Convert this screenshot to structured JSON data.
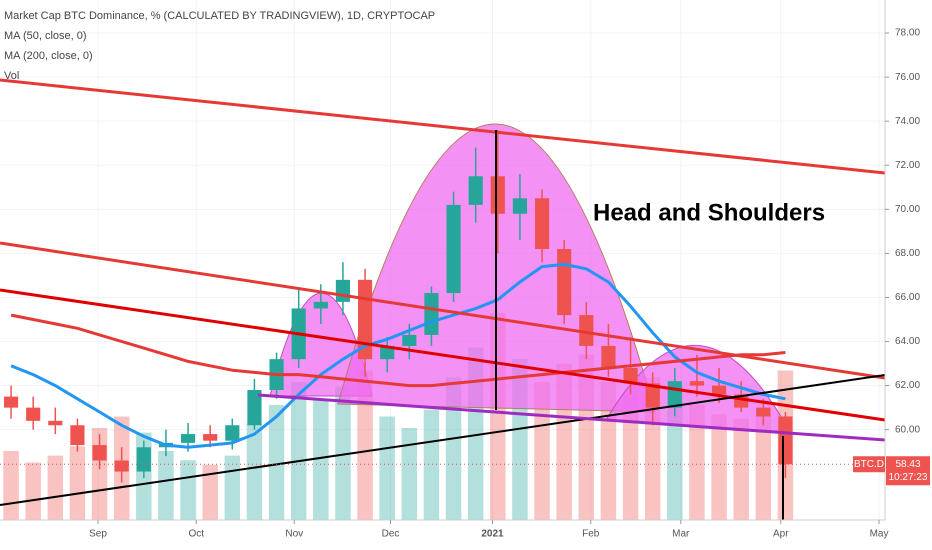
{
  "chart_data": {
    "type": "candlestick",
    "title": "Market Cap BTC Dominance, % (CALCULATED BY TRADINGVIEW), 1D, CRYPTOCAP",
    "annotation": "Head and Shoulders",
    "symbol": "BTC.D",
    "last_price": {
      "value": 58.43,
      "label": "58.43"
    },
    "countdown": "10:27:23",
    "volume_name": "Vol",
    "open": [
      61.5,
      61,
      60.4,
      60.2,
      59.3,
      58.6,
      58.1,
      59.2,
      59.4,
      59.8,
      59.5,
      60.2,
      61.8,
      63.2,
      65.5,
      65.8,
      66.8,
      63.2,
      63.8,
      64.3,
      66.2,
      70.2,
      71.5,
      69.8,
      70.5,
      68.2,
      65.2,
      63.8,
      62.8,
      62.1,
      61,
      62.2,
      62,
      61.6,
      61,
      60.6
    ],
    "high": [
      62,
      61.5,
      61,
      60.5,
      59.8,
      59.2,
      59.5,
      60,
      60.3,
      60.2,
      60.5,
      62.3,
      63.5,
      66.4,
      66.6,
      67.6,
      67.3,
      64.2,
      64.8,
      66.5,
      70.8,
      72.8,
      73.6,
      71.6,
      70.9,
      68.6,
      65.8,
      64.8,
      64.2,
      62.6,
      62.8,
      63.4,
      62.8,
      62.2,
      61.4,
      60.8
    ],
    "low": [
      60.5,
      60,
      59.8,
      59,
      58.2,
      57.6,
      57.8,
      58.8,
      59,
      59.2,
      59.1,
      60,
      61.4,
      62.8,
      64.8,
      65.2,
      62.4,
      62.6,
      63.2,
      63.8,
      65.8,
      69.4,
      68,
      68.6,
      67.6,
      64.8,
      63.2,
      62.4,
      61.6,
      60.2,
      60.6,
      61.5,
      61.2,
      60.8,
      60.2,
      57.8
    ],
    "close": [
      61,
      60.4,
      60.2,
      59.3,
      58.6,
      58.1,
      59.2,
      59.4,
      59.8,
      59.5,
      60.2,
      61.8,
      63.2,
      65.5,
      65.8,
      66.8,
      63.2,
      63.8,
      64.3,
      66.2,
      70.2,
      71.5,
      69.8,
      70.5,
      68.2,
      65.2,
      63.8,
      62.8,
      62.1,
      61,
      62.2,
      62,
      61.6,
      61,
      60.6,
      58.43
    ],
    "volume": [
      3,
      2.5,
      2.8,
      3.2,
      4,
      4.5,
      3.8,
      3,
      2.6,
      2.4,
      2.8,
      4.2,
      5,
      6,
      5.2,
      5.8,
      6.5,
      4.5,
      4,
      4.8,
      6.2,
      7.5,
      9,
      7,
      6,
      6.8,
      7.2,
      6,
      5.5,
      6.2,
      5.8,
      5,
      4.6,
      4.4,
      4.8,
      6.5
    ],
    "volume_lim": [
      0,
      20
    ],
    "series": [
      {
        "name": "MA (50, close, 0)",
        "color": "#2196f3",
        "values": [
          62.9,
          62.5,
          62.0,
          61.4,
          60.8,
          60.2,
          59.7,
          59.3,
          59.2,
          59.3,
          59.4,
          59.8,
          60.6,
          61.6,
          62.5,
          63.2,
          63.8,
          64.1,
          64.5,
          64.9,
          65.2,
          65.5,
          65.9,
          66.7,
          67.4,
          67.5,
          67.3,
          66.7,
          65.6,
          64.4,
          63.3,
          62.6,
          62.2,
          61.9,
          61.6,
          61.4
        ]
      },
      {
        "name": "MA (200, close, 0)",
        "color": "#e53935",
        "values": [
          65.2,
          65.0,
          64.8,
          64.6,
          64.3,
          64.0,
          63.7,
          63.4,
          63.1,
          62.9,
          62.7,
          62.6,
          62.5,
          62.5,
          62.4,
          62.3,
          62.2,
          62.1,
          62.0,
          62.0,
          62.1,
          62.2,
          62.3,
          62.4,
          62.5,
          62.6,
          62.7,
          62.8,
          62.9,
          63.0,
          63.1,
          63.2,
          63.3,
          63.4,
          63.4,
          63.5
        ]
      }
    ],
    "up_color": "#26a69a",
    "down_color": "#ef5350",
    "xlim": [
      0,
      40
    ],
    "xticks": [
      {
        "value": 4.43,
        "label": "Sep"
      },
      {
        "value": 8.87,
        "label": "Oct"
      },
      {
        "value": 13.3,
        "label": "Nov"
      },
      {
        "value": 17.65,
        "label": "Dec"
      },
      {
        "value": 22.26,
        "label": "2021"
      },
      {
        "value": 26.7,
        "label": "Feb"
      },
      {
        "value": 30.77,
        "label": "Mar"
      },
      {
        "value": 35.29,
        "label": "Apr"
      },
      {
        "value": 39.73,
        "label": "May"
      }
    ],
    "ylim": [
      55.9,
      79.5
    ],
    "yticks": [
      {
        "value": 60,
        "label": "60.00"
      },
      {
        "value": 62,
        "label": "62.00"
      },
      {
        "value": 64,
        "label": "64.00"
      },
      {
        "value": 66,
        "label": "66.00"
      },
      {
        "value": 68,
        "label": "68.00"
      },
      {
        "value": 70,
        "label": "70.00"
      },
      {
        "value": 72,
        "label": "72.00"
      },
      {
        "value": 74,
        "label": "74.00"
      },
      {
        "value": 76,
        "label": "76.00"
      },
      {
        "value": 78,
        "label": "78.00"
      }
    ],
    "grid": true
  }
}
